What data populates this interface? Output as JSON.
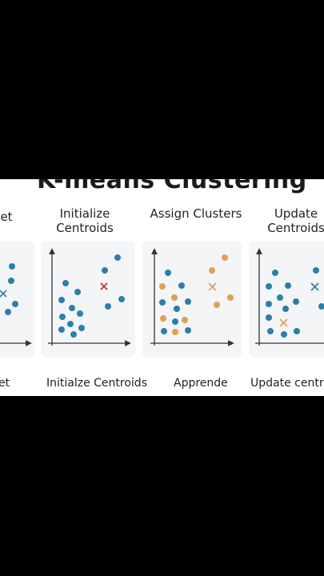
{
  "title": "K-means Clustering",
  "steps": [
    {
      "label": "et"
    },
    {
      "label_line1": "Initialize",
      "label_line2": "Centroids"
    },
    {
      "label": "Assign Clusters"
    },
    {
      "label_line1": "Update",
      "label_line2": "Centroids"
    }
  ],
  "captions": [
    "et",
    "Initialze Centroids",
    "Apprende",
    "Update centro"
  ],
  "colors": {
    "background": "#000000",
    "panel": "#f4f5f6",
    "blue_point": "#2b7fa8",
    "orange_point": "#e0a050",
    "red_centroid": "#c0392b",
    "orange_centroid": "#e0a050",
    "blue_centroid": "#2b7fa8",
    "axis": "#333333"
  },
  "icons": [
    "centroid-x-icon",
    "axis-arrow-icon"
  ]
}
